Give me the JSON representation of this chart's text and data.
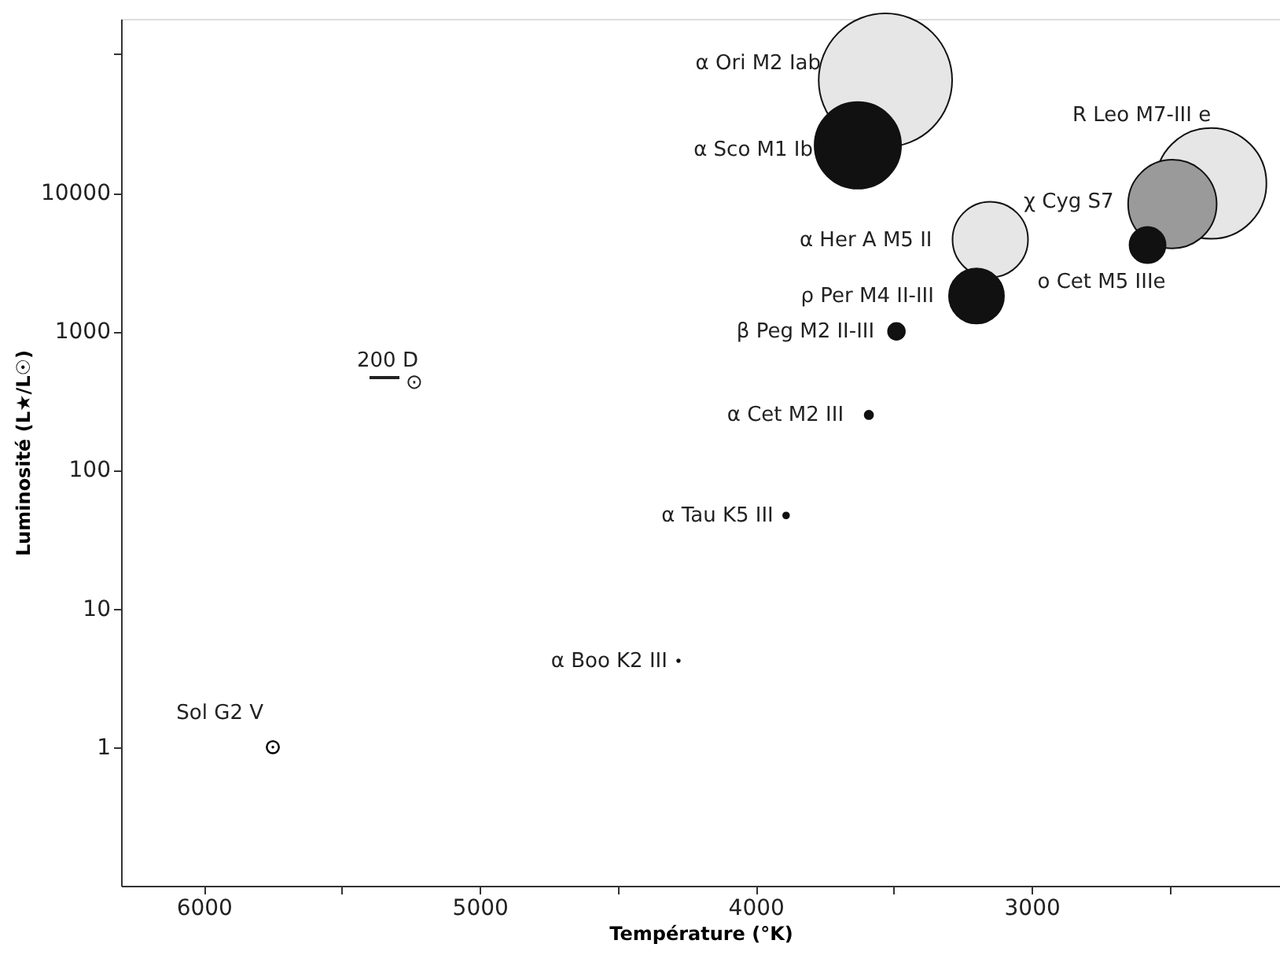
{
  "chart_data": {
    "type": "bubble",
    "xlabel": "Température (°K)",
    "ylabel": "Luminosité (L★/L☉)",
    "xlim": [
      6300,
      2100
    ],
    "ylim": [
      0.1,
      180000
    ],
    "log": "y",
    "grid": false,
    "xticks": [
      6000,
      {
        "value": 5500,
        "label": null
      },
      5000,
      {
        "value": 4500,
        "label": null
      },
      4000,
      {
        "value": 3500,
        "label": null
      },
      3000,
      {
        "value": 2500,
        "label": null
      }
    ],
    "yticks": [
      1,
      10,
      100,
      1000,
      10000,
      {
        "value": 100000,
        "label": null
      }
    ],
    "series": [
      {
        "x": [
          3530,
          3630,
          2350,
          2490,
          2580,
          3150,
          3200,
          3490,
          3590,
          3890,
          4280
        ],
        "values": [
          65000,
          22000,
          11700,
          8300,
          4200,
          4600,
          1800,
          1000,
          250,
          47,
          4.2
        ],
        "sizes": [
          1,
          0.42,
          0.69,
          0.44,
          0.073,
          0.32,
          0.17,
          0.016,
          0.004,
          0.002,
          0.0004
        ],
        "colors": [
          "#e6e6e6",
          "#111111",
          "#e6e6e6",
          "#9a9a9a",
          "#111111",
          "#e6e6e6",
          "#111111",
          "#111111",
          "#111111",
          "#111111",
          "#111111"
        ]
      },
      {
        "type": "scatter",
        "x": [
          5750
        ],
        "values": [
          1
        ],
        "color": "#000000",
        "marker": "circle"
      }
    ],
    "annotations": [
      "α Ori M2 Iab",
      "α Sco M1 Ib",
      "R Leo M7-III e",
      "χ Cyg S7",
      {
        "text": "o Cet M5 IIIe",
        "x": 2580,
        "y": 4200
      },
      {
        "text": "α Her A M5 II",
        "x": 3150,
        "y": 4600
      },
      {
        "text": "ρ Per M4 II-III",
        "x": 3200,
        "y": 1800
      },
      {
        "text": "β Peg M2 II-III",
        "x": 3490,
        "y": 1000
      },
      {
        "text": "α Cet M2 III",
        "x": 3590,
        "y": 250
      },
      {
        "text": "α Tau K5 III",
        "x": 3890,
        "y": 47
      },
      {
        "text": "α Boo K2 III",
        "x": 4280,
        "y": 4.2
      },
      {
        "text": "Sol G2 V",
        "x": 5750,
        "y": 1
      },
      "200 D",
      "⊙"
    ]
  }
}
